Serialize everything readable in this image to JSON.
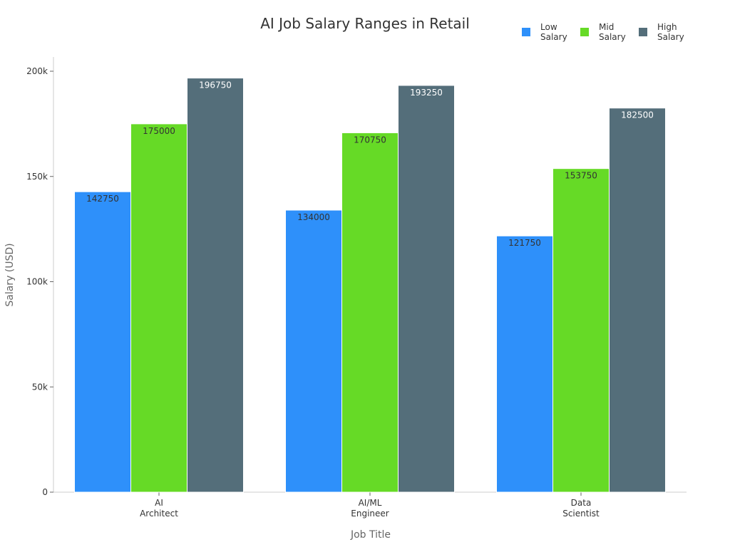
{
  "chart_data": {
    "type": "bar",
    "title": "AI Job Salary Ranges in Retail",
    "xlabel": "Job Title",
    "ylabel": "Salary (USD)",
    "ylim": [
      0,
      200000
    ],
    "yticks": [
      0,
      50000,
      100000,
      150000,
      200000
    ],
    "ytick_labels": [
      "0",
      "50k",
      "100k",
      "150k",
      "200k"
    ],
    "categories": [
      [
        "AI",
        "Architect"
      ],
      [
        "AI/ML",
        "Engineer"
      ],
      [
        "Data",
        "Scientist"
      ]
    ],
    "legend_position": "top-right",
    "series": [
      {
        "name": [
          "Low",
          "Salary"
        ],
        "color": "#2e90fa",
        "label_color": "#333333",
        "values": [
          142750,
          134000,
          121750
        ]
      },
      {
        "name": [
          "Mid",
          "Salary"
        ],
        "color": "#66da26",
        "label_color": "#333333",
        "values": [
          175000,
          170750,
          153750
        ]
      },
      {
        "name": [
          "High",
          "Salary"
        ],
        "color": "#546e7a",
        "label_color": "#ffffff",
        "values": [
          196750,
          193250,
          182500
        ]
      }
    ]
  }
}
